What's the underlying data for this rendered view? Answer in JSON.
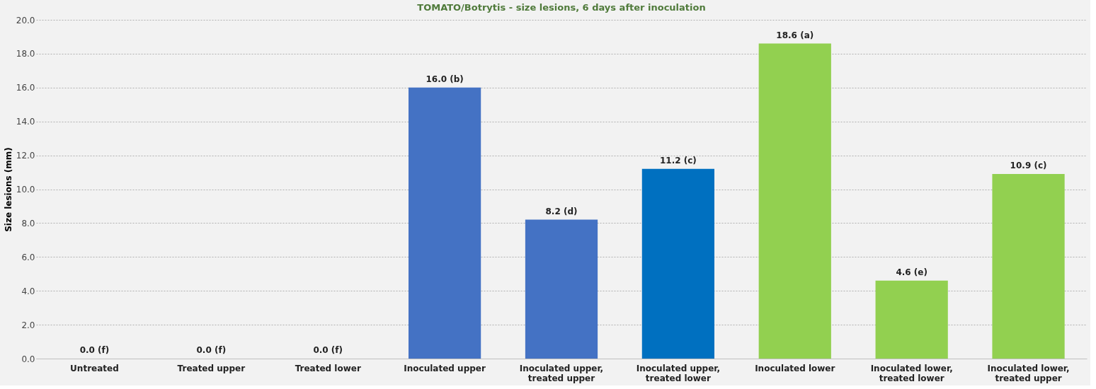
{
  "chart_data": {
    "type": "bar",
    "title": "TOMATO/Botrytis - size lesions, 6 days after inoculation",
    "ylabel": "Size lesions (mm)",
    "categories": [
      "Untreated",
      "Treated upper",
      "Treated lower",
      "Inoculated upper",
      "Inoculated upper, treated upper",
      "Inoculated upper, treated lower",
      "Inoculated lower",
      "Inoculated lower, treated lower",
      "Inoculated lower, treated upper"
    ],
    "values": [
      0.0,
      0.0,
      0.0,
      16.0,
      8.2,
      11.2,
      18.6,
      4.6,
      10.9
    ],
    "colors": [
      "#4472c4",
      "#4472c4",
      "#4472c4",
      "#4472c4",
      "#4472c4",
      "#0070c0",
      "#92d050",
      "#92d050",
      "#92d050"
    ],
    "value_labels": [
      "0.0 (f)",
      "0.0 (f)",
      "0.0 (f)",
      "16.0 (b)",
      "8.2 (d)",
      "11.2 (c)",
      "18.6 (a)",
      "4.6 (e)",
      "10.9 (c)"
    ],
    "ylim": [
      0,
      20
    ],
    "yticks": [
      {
        "value": 0,
        "label": "0.0"
      },
      {
        "value": 2,
        "label": "2.0"
      },
      {
        "value": 4,
        "label": "4.0"
      },
      {
        "value": 6,
        "label": "6.0"
      },
      {
        "value": 8,
        "label": "8.0"
      },
      {
        "value": 10,
        "label": "10.0"
      },
      {
        "value": 12,
        "label": "12.0"
      },
      {
        "value": 14,
        "label": "14.0"
      },
      {
        "value": 16,
        "label": "16.0"
      },
      {
        "value": 18,
        "label": "18.0"
      },
      {
        "value": 20,
        "label": "20.0"
      }
    ],
    "grid": "y"
  }
}
